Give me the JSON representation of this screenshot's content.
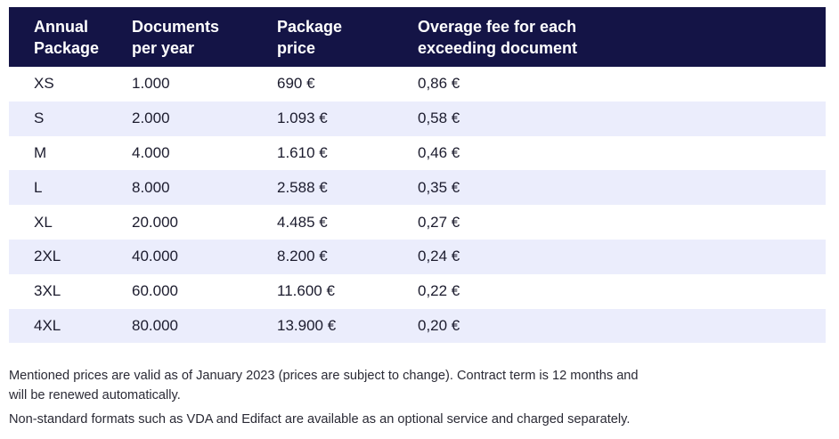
{
  "table": {
    "headers": [
      [
        "Annual",
        "Package"
      ],
      [
        "Documents",
        "per year"
      ],
      [
        "Package",
        "price"
      ],
      [
        "Overage fee for each",
        "exceeding document"
      ]
    ],
    "rows": [
      [
        "XS",
        "1.000",
        "690 €",
        "0,86 €"
      ],
      [
        "S",
        "2.000",
        "1.093 €",
        "0,58 €"
      ],
      [
        "M",
        "4.000",
        "1.610 €",
        "0,46 €"
      ],
      [
        "L",
        "8.000",
        "2.588 €",
        "0,35 €"
      ],
      [
        "XL",
        "20.000",
        "4.485 €",
        "0,27 €"
      ],
      [
        "2XL",
        "40.000",
        "8.200 €",
        "0,24 €"
      ],
      [
        "3XL",
        "60.000",
        "11.600 €",
        "0,22 €"
      ],
      [
        "4XL",
        "80.000",
        "13.900 €",
        "0,20 €"
      ]
    ]
  },
  "notes": {
    "line1": "Mentioned prices are valid as of January 2023 (prices are subject to change). Contract term is 12 months and",
    "line2": "will be renewed automatically.",
    "line3": "Non-standard formats such as VDA and Edifact are available as an optional service and charged separately."
  },
  "colors": {
    "header_bg": "#141446",
    "alt_row_bg": "#ebedfc"
  }
}
